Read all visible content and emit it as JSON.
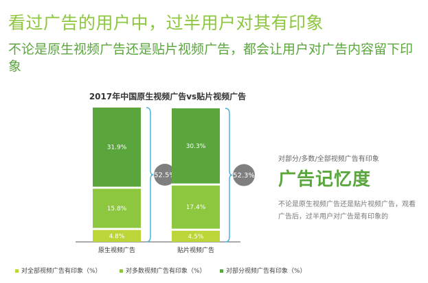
{
  "headline": "看过广告的用户中，过半用户对其有印象",
  "subheadline": "不论是原生视频广告还是贴片视频广告，都会让用户对广告内容留下印象",
  "colors": {
    "light": "#bcd63a",
    "mid": "#8dc63f",
    "dark": "#5aa63d",
    "circle": "#7f7f7f",
    "bracket": "#4ab2df"
  },
  "chart_data": {
    "type": "bar",
    "stacked": true,
    "title": "2017年中国原生视频广告vs贴片视频广告",
    "categories": [
      "原生视频广告",
      "贴片视频广告"
    ],
    "series": [
      {
        "name": "对全部视频广告有印象（%）",
        "values": [
          4.8,
          4.5
        ],
        "labels": [
          "4.8%",
          "4.5%"
        ]
      },
      {
        "name": "对多数视频广告有印象（%）",
        "values": [
          15.8,
          17.4
        ],
        "labels": [
          "15.8%",
          "17.4%"
        ]
      },
      {
        "name": "对部分视频广告有印象（%）",
        "values": [
          31.9,
          30.3
        ],
        "labels": [
          "31.9%",
          "30.3%"
        ]
      }
    ],
    "totals": [
      "52.5%",
      "52.3%"
    ],
    "legend_position": "bottom"
  },
  "side": {
    "subtitle": "对部分/多数/全部视频广告有印象",
    "title": "广告记忆度",
    "description": "不论是原生视频广告还是贴片视频广告，观看广告后，过半用户对广告是有印象的"
  }
}
